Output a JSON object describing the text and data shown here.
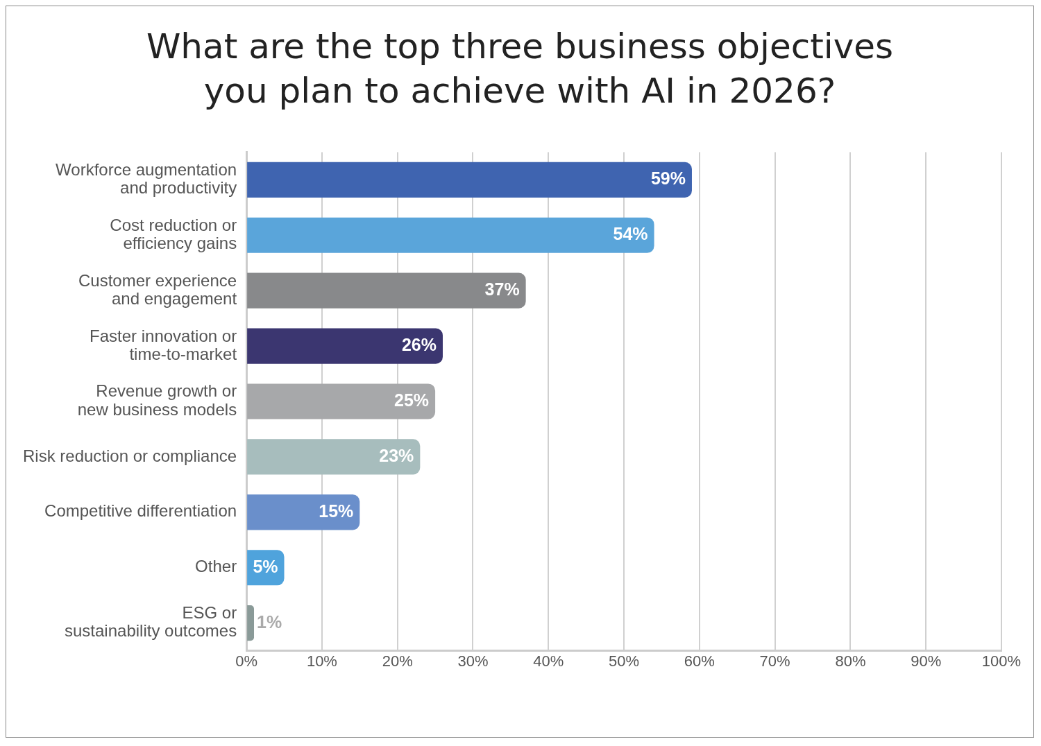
{
  "chart_data": {
    "type": "bar",
    "orientation": "horizontal",
    "title": "What are the top three business objectives\nyou plan to achieve with AI in 2026?",
    "categories": [
      "Workforce augmentation\nand productivity",
      "Cost reduction or\nefficiency gains",
      "Customer experience\nand engagement",
      "Faster innovation or\ntime-to-market",
      "Revenue growth or\nnew business models",
      "Risk reduction or compliance",
      "Competitive differentiation",
      "Other",
      "ESG or\nsustainability outcomes"
    ],
    "values": [
      59,
      54,
      37,
      26,
      25,
      23,
      15,
      5,
      1
    ],
    "colors": [
      "#3f64b0",
      "#5aa5da",
      "#88898b",
      "#3b3670",
      "#a7a8aa",
      "#a7bdbd",
      "#6a8fcb",
      "#4fa3dc",
      "#8a9a98"
    ],
    "xlim": [
      0,
      100
    ],
    "xticks": [
      {
        "value": 0,
        "label": "0%"
      },
      {
        "value": 10,
        "label": "10%"
      },
      {
        "value": 20,
        "label": "20%"
      },
      {
        "value": 30,
        "label": "30%"
      },
      {
        "value": 40,
        "label": "40%"
      },
      {
        "value": 50,
        "label": "50%"
      },
      {
        "value": 60,
        "label": "60%"
      },
      {
        "value": 70,
        "label": "70%"
      },
      {
        "value": 80,
        "label": "80%"
      },
      {
        "value": 90,
        "label": "90%"
      },
      {
        "value": 100,
        "label": "100%"
      }
    ],
    "value_labels": [
      "59%",
      "54%",
      "37%",
      "26%",
      "25%",
      "23%",
      "15%",
      "5%",
      "1%"
    ],
    "grid": "x",
    "legend": false
  }
}
